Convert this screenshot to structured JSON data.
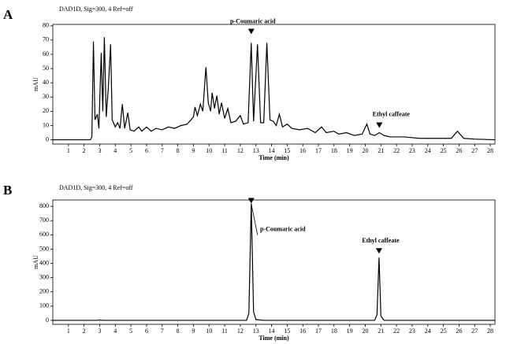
{
  "chart_data": [
    {
      "type": "line",
      "panel": "A",
      "title": "DAD1D, Sig=300, 4 Ref=off",
      "xlabel": "Time (min)",
      "ylabel": "mAU",
      "xlim": [
        0,
        28.3
      ],
      "ylim": [
        -3,
        81
      ],
      "xticks": [
        1,
        2,
        3,
        4,
        5,
        6,
        7,
        8,
        9,
        10,
        11,
        12,
        13,
        14,
        15,
        16,
        17,
        18,
        19,
        20,
        21,
        22,
        23,
        24,
        25,
        26,
        27,
        28
      ],
      "yticks": [
        0,
        10,
        20,
        30,
        40,
        50,
        60,
        70,
        80
      ],
      "x": [
        0,
        2.4,
        2.5,
        2.6,
        2.7,
        2.85,
        2.95,
        3.1,
        3.2,
        3.3,
        3.42,
        3.55,
        3.7,
        3.8,
        4.0,
        4.15,
        4.3,
        4.45,
        4.6,
        4.8,
        4.95,
        5.2,
        5.5,
        5.7,
        6.0,
        6.3,
        6.6,
        7.0,
        7.4,
        7.8,
        8.2,
        8.6,
        9.0,
        9.1,
        9.25,
        9.45,
        9.6,
        9.8,
        9.95,
        10.1,
        10.2,
        10.35,
        10.5,
        10.65,
        10.8,
        11.0,
        11.2,
        11.4,
        11.7,
        12.0,
        12.2,
        12.5,
        12.7,
        12.85,
        13.1,
        13.3,
        13.5,
        13.7,
        13.9,
        14.1,
        14.3,
        14.5,
        14.7,
        15.0,
        15.3,
        15.8,
        16.3,
        16.8,
        17.2,
        17.5,
        18.0,
        18.3,
        18.8,
        19.3,
        19.8,
        20.1,
        20.3,
        20.6,
        20.9,
        21.2,
        21.6,
        22.5,
        23.5,
        24.5,
        25.5,
        25.9,
        26.3,
        27,
        28.3
      ],
      "series": [
        {
          "color": "#000000",
          "values": [
            0,
            0,
            2,
            69,
            14,
            18,
            8,
            61,
            20,
            72,
            16,
            36,
            67,
            14,
            9,
            12,
            8,
            25,
            8,
            19,
            7,
            6,
            9,
            6,
            9,
            6,
            8,
            7,
            9,
            8,
            10,
            11,
            16,
            23,
            17,
            25,
            20,
            51,
            26,
            20,
            33,
            22,
            31,
            18,
            26,
            15,
            22,
            12,
            13,
            17,
            11,
            12,
            68,
            13,
            67,
            12,
            12,
            68,
            14,
            13,
            10,
            18,
            9,
            11,
            8,
            7,
            8,
            5,
            9,
            5,
            6,
            4,
            5,
            3,
            4,
            11,
            4,
            3,
            5,
            3,
            2,
            2,
            1,
            1,
            1,
            6,
            1,
            0.5,
            0
          ]
        }
      ],
      "annotations": [
        {
          "text": "p-Coumaric acid",
          "x": 12.7,
          "y": 68
        },
        {
          "text": "Ethyl caffeate",
          "x": 20.9,
          "y": 5
        }
      ]
    },
    {
      "type": "line",
      "panel": "B",
      "title": "DAD1D, Sig=300, 4 Ref=off",
      "xlabel": "Time (min)",
      "ylabel": "mAU",
      "xlim": [
        0,
        28.3
      ],
      "ylim": [
        -28,
        845
      ],
      "xticks": [
        1,
        2,
        3,
        4,
        5,
        6,
        7,
        8,
        9,
        10,
        11,
        12,
        13,
        14,
        15,
        16,
        17,
        18,
        19,
        20,
        21,
        22,
        23,
        24,
        25,
        26,
        27,
        28
      ],
      "yticks": [
        0,
        100,
        200,
        300,
        400,
        500,
        600,
        700,
        800
      ],
      "x": [
        0,
        2.8,
        3.0,
        3.2,
        12.4,
        12.55,
        12.7,
        12.85,
        13.0,
        13.5,
        20.6,
        20.75,
        20.88,
        21.0,
        21.2,
        28.3
      ],
      "series": [
        {
          "color": "#000000",
          "values": [
            0,
            0,
            2,
            0,
            0,
            50,
            820,
            60,
            5,
            0,
            0,
            40,
            440,
            30,
            0,
            0
          ]
        }
      ],
      "annotations": [
        {
          "text": "p-Coumaric acid",
          "x": 12.7,
          "y": 820
        },
        {
          "text": "Ethyl caffeate",
          "x": 20.88,
          "y": 440
        }
      ]
    }
  ]
}
